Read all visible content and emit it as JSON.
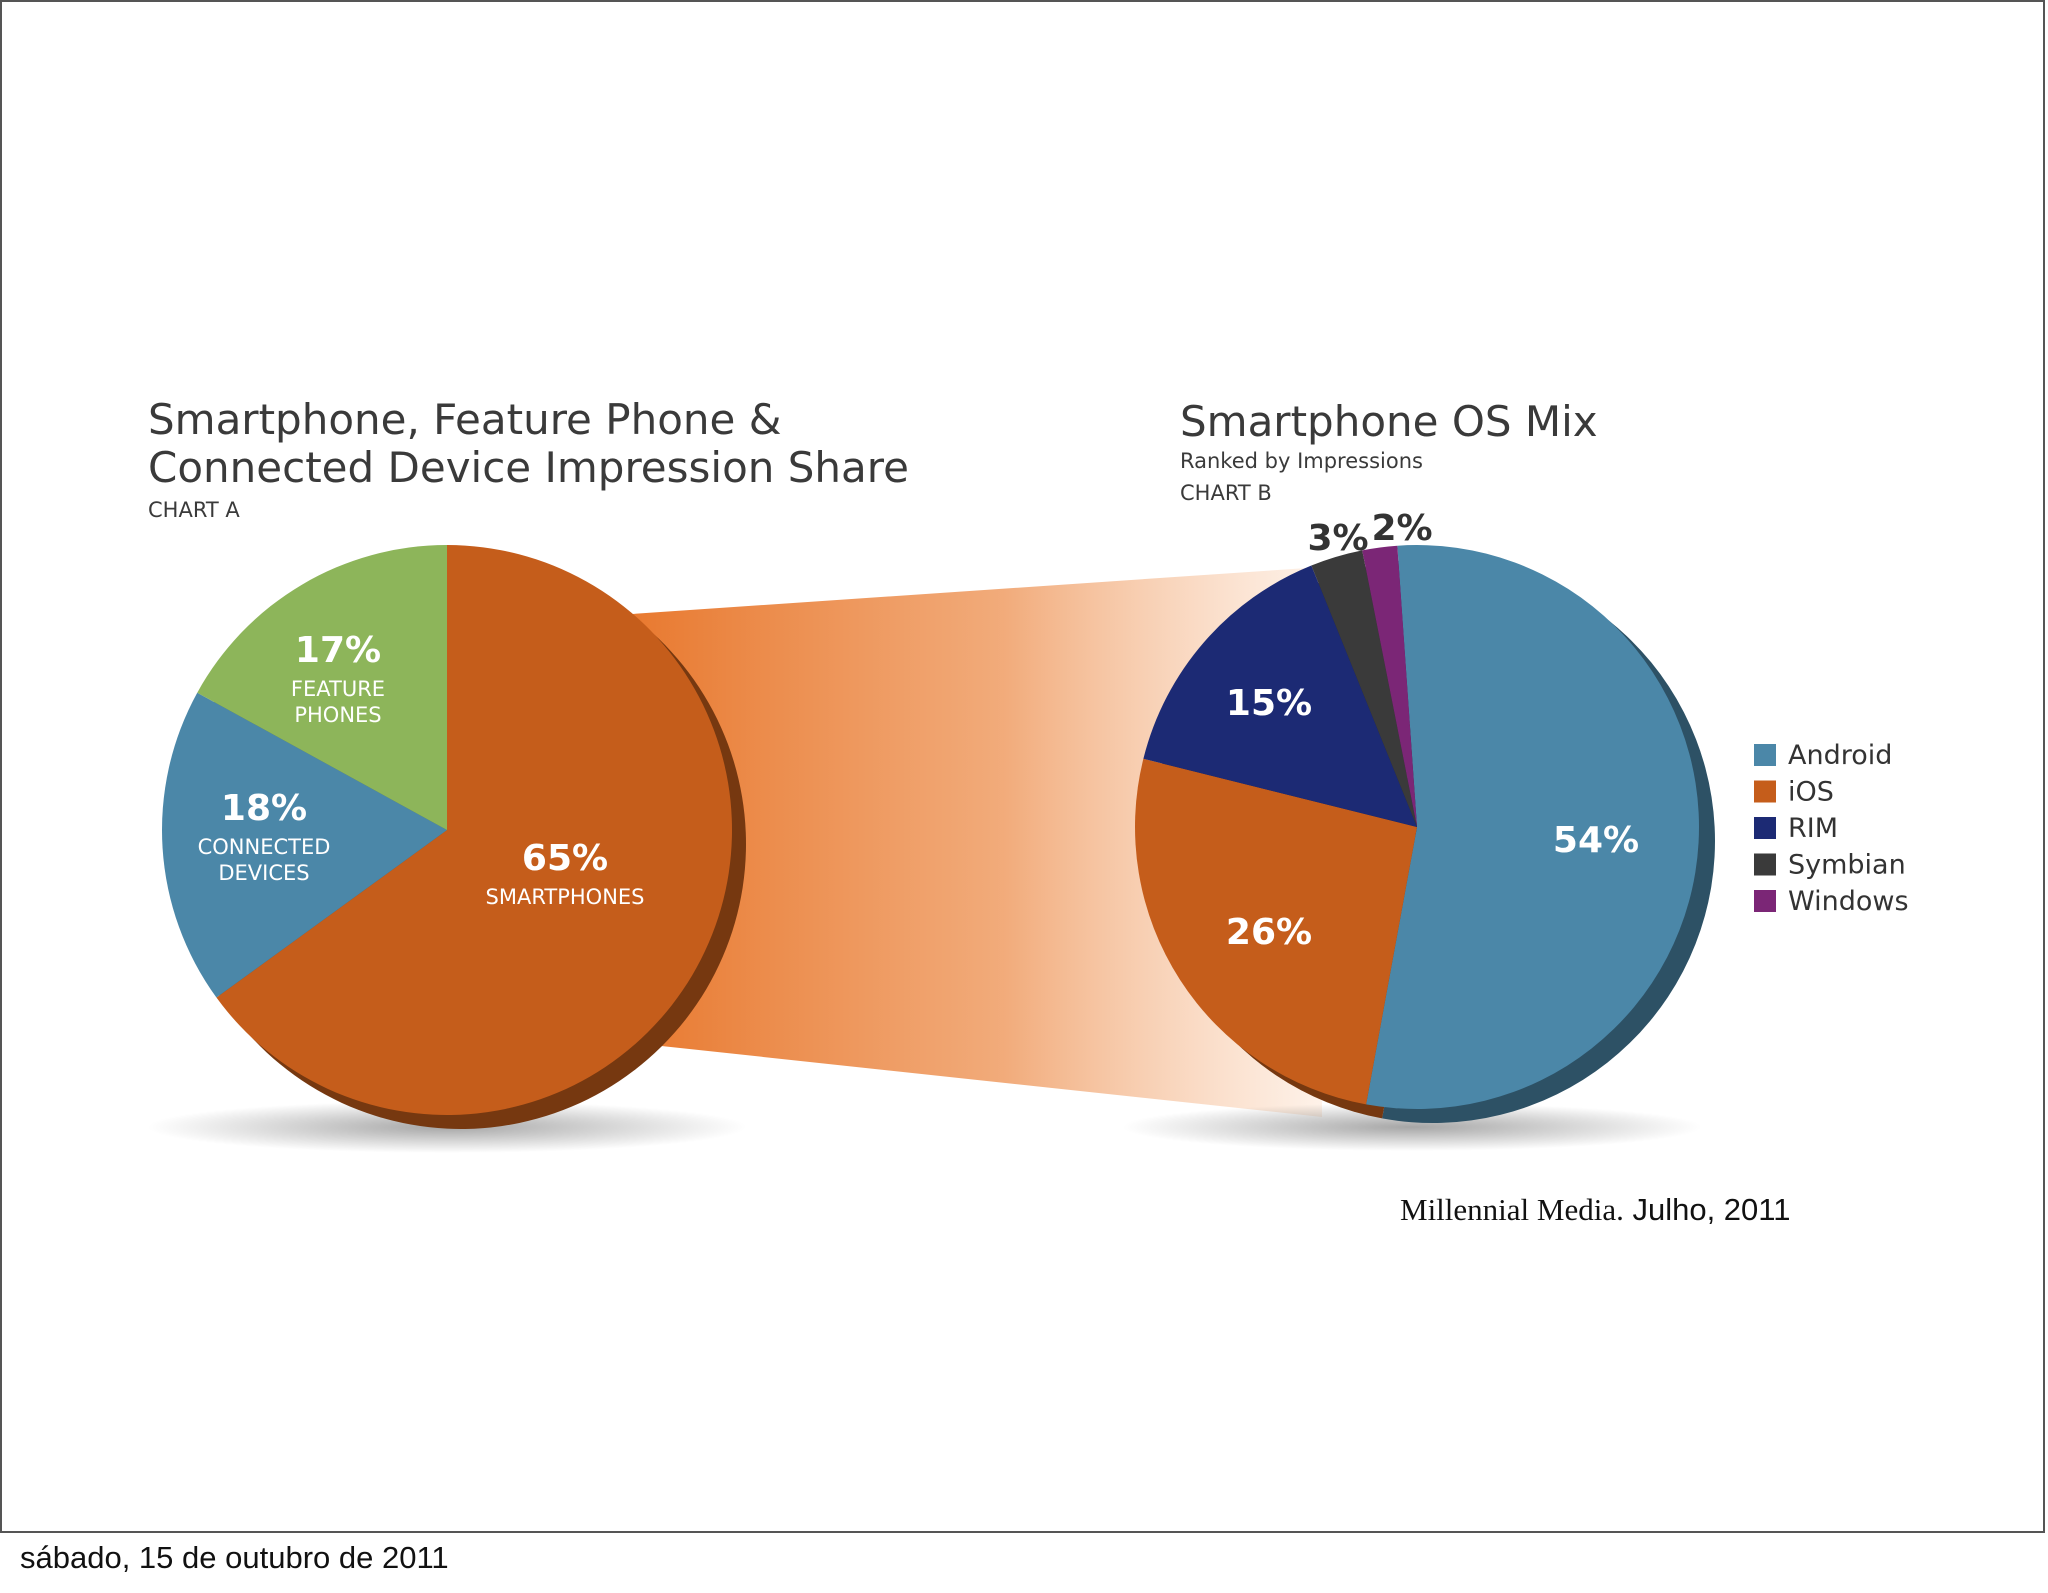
{
  "colors": {
    "android": "#4b87a8",
    "ios": "#c55d1b",
    "rim": "#1c2a74",
    "symbian": "#3a3a3a",
    "windows": "#7b2676",
    "feature": "#8db55a",
    "connected": "#4b87a8",
    "smartphones": "#c55d1b",
    "connector": "#e8772c"
  },
  "chart_data": [
    {
      "type": "pie",
      "title": "Smartphone, Feature Phone & Connected Device Impression Share",
      "title_lines": [
        "Smartphone, Feature Phone &",
        "Connected Device Impression Share"
      ],
      "subtitle": "CHART A",
      "slices": [
        {
          "key": "smartphones",
          "value": 65,
          "label": "65%",
          "name_lines": [
            "SMARTPHONES"
          ]
        },
        {
          "key": "connected",
          "value": 18,
          "label": "18%",
          "name_lines": [
            "CONNECTED",
            "DEVICES"
          ]
        },
        {
          "key": "feature",
          "value": 17,
          "label": "17%",
          "name_lines": [
            "FEATURE",
            "PHONES"
          ]
        }
      ]
    },
    {
      "type": "pie",
      "title": "Smartphone OS Mix",
      "subtitle": "Ranked by Impressions",
      "subtitle2": "CHART B",
      "slices": [
        {
          "key": "android",
          "value": 54,
          "label": "54%",
          "name": "Android"
        },
        {
          "key": "ios",
          "value": 26,
          "label": "26%",
          "name": "iOS"
        },
        {
          "key": "rim",
          "value": 15,
          "label": "15%",
          "name": "RIM"
        },
        {
          "key": "symbian",
          "value": 3,
          "label": "3%",
          "name": "Symbian"
        },
        {
          "key": "windows",
          "value": 2,
          "label": "2%",
          "name": "Windows"
        }
      ],
      "legend": {
        "position": "right",
        "items": [
          "Android",
          "iOS",
          "RIM",
          "Symbian",
          "Windows"
        ]
      }
    }
  ],
  "source": {
    "name": "Millennial Media.",
    "date": "Julho, 2011"
  },
  "footer": {
    "date": "sábado, 15 de outubro de 2011"
  }
}
